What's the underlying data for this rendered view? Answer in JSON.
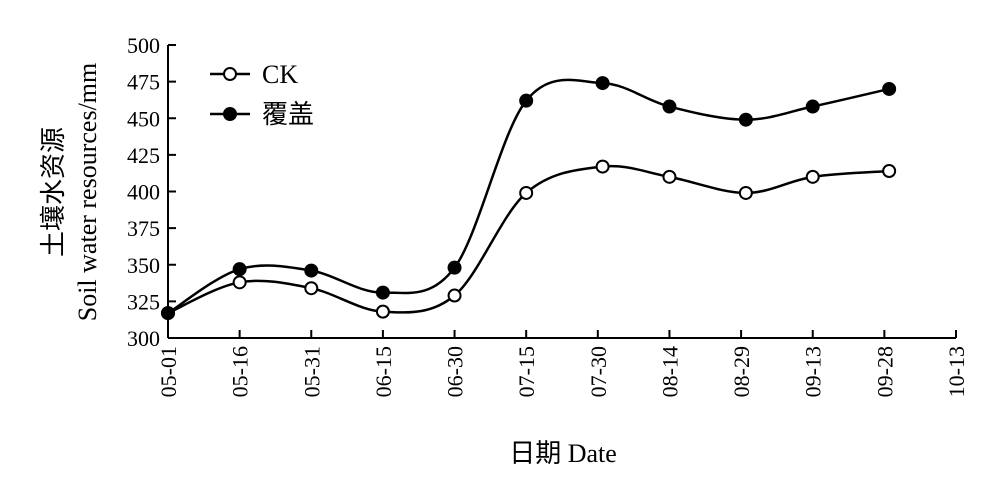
{
  "chart_data": {
    "type": "line",
    "x_ticks": [
      "05-01",
      "05-16",
      "05-31",
      "06-15",
      "06-30",
      "07-15",
      "07-30",
      "08-14",
      "08-29",
      "09-13",
      "09-28",
      "10-13"
    ],
    "x_points": [
      "05-01",
      "05-16",
      "05-31",
      "06-15",
      "06-30",
      "07-15",
      "07-31",
      "08-14",
      "08-30",
      "09-13",
      "09-29"
    ],
    "series": [
      {
        "name": "CK",
        "marker": "open-circle",
        "values": [
          317,
          338,
          334,
          318,
          329,
          399,
          417,
          410,
          399,
          410,
          414
        ]
      },
      {
        "name": "覆盖",
        "marker": "filled-circle",
        "values": [
          317,
          347,
          346,
          331,
          348,
          462,
          474,
          458,
          449,
          458,
          470
        ]
      }
    ],
    "y_ticks": [
      300,
      325,
      350,
      375,
      400,
      425,
      450,
      475,
      500
    ],
    "ylim": [
      300,
      500
    ],
    "xlabel": "日期 Date",
    "ylabel_line1": "土壤水资源",
    "ylabel_line2": "Soil water resources/mm",
    "legend_position": "top-left",
    "grid": false
  }
}
